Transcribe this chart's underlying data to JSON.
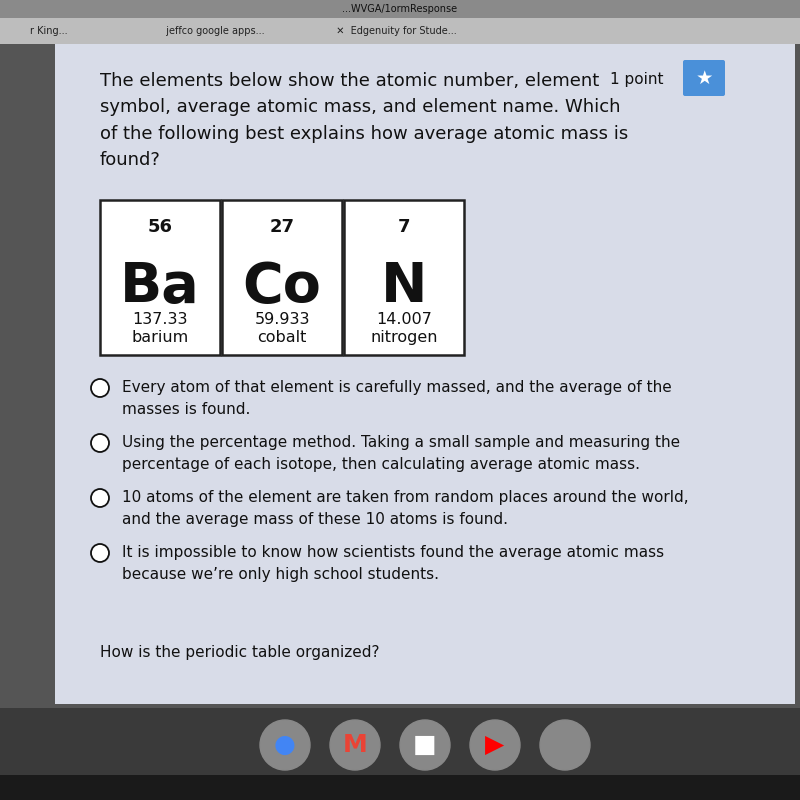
{
  "question_text": "The elements below show the atomic number, element\nsymbol, average atomic mass, and element name. Which\nof the following best explains how average atomic mass is\nfound?",
  "point_label": "1 point",
  "elements": [
    {
      "atomic_number": "56",
      "symbol": "Ba",
      "mass": "137.33",
      "name": "barium"
    },
    {
      "atomic_number": "27",
      "symbol": "Co",
      "mass": "59.933",
      "name": "cobalt"
    },
    {
      "atomic_number": "7",
      "symbol": "N",
      "mass": "14.007",
      "name": "nitrogen"
    }
  ],
  "answer_choices": [
    "Every atom of that element is carefully massed, and the average of the\nmasses is found.",
    "Using the percentage method. Taking a small sample and measuring the\npercentage of each isotope, then calculating average atomic mass.",
    "10 atoms of the element are taken from random places around the world,\nand the average mass of these 10 atoms is found.",
    "It is impossible to know how scientists found the average atomic mass\nbecause we’re only high school students."
  ],
  "bottom_text": "How is the periodic table organized?",
  "browser_bar_color": "#d0d0d0",
  "browser_tab_color": "#e8e8e8",
  "tab_text_color": "#333333",
  "tab_texts": [
    "r King...",
    "jeffco google apps...",
    "X  Edgenuity for Stude..."
  ],
  "url_bar_color": "#c8c8c8",
  "url_text": "...WVGA/1ormResponse",
  "content_bg": "#c8ccda",
  "white_panel_color": "#e8eaf0",
  "box_bg": "#ffffff",
  "box_border": "#222222",
  "text_color": "#111111",
  "question_font_size": 13,
  "symbol_font_size": 40,
  "number_font_size": 13,
  "mass_font_size": 11.5,
  "name_font_size": 11.5,
  "answer_font_size": 11,
  "point_font_size": 11,
  "taskbar_color": "#3a3a3a",
  "taskbar_icon_colors": [
    "#4285F4",
    "#EA4335",
    "#4FC3F7",
    "#FF0000",
    "#90CAF9"
  ]
}
